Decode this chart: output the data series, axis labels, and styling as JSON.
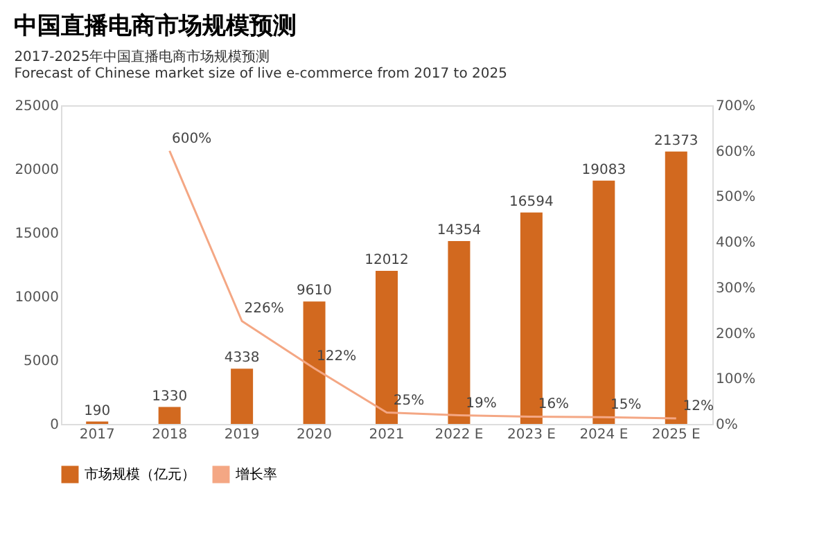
{
  "chart_data": {
    "type": "bar",
    "title": "中国直播电商市场规模预测",
    "subtitle": "2017-2025年中国直播电商市场规模预测",
    "annotations": [
      "Forecast of Chinese market size of live e-commerce from 2017 to 2025"
    ],
    "categories": [
      "2017",
      "2018",
      "2019",
      "2020",
      "2021",
      "2022 E",
      "2023 E",
      "2024 E",
      "2025 E"
    ],
    "series": [
      {
        "name": "市场规模（亿元）",
        "color": "#d2691f",
        "values": [
          190,
          1330,
          4338,
          9610,
          12012,
          14354,
          16594,
          19083,
          21373
        ]
      },
      {
        "name": "增长率",
        "type": "line",
        "axis": "y2",
        "color": "#f4a784",
        "values": [
          null,
          600,
          226,
          122,
          25,
          19,
          16,
          15,
          12
        ],
        "value_labels": [
          null,
          "600%",
          "226%",
          "122%",
          "25%",
          "19%",
          "16%",
          "15%",
          "12%"
        ]
      }
    ],
    "data_labels": true,
    "ylim": [
      0,
      25000
    ],
    "yticks": [
      0,
      5000,
      10000,
      15000,
      20000,
      25000
    ],
    "y2lim": [
      0,
      700
    ],
    "y2ticks": [
      {
        "value": 0,
        "label": "0%"
      },
      {
        "value": 100,
        "label": "100%"
      },
      {
        "value": 200,
        "label": "200%"
      },
      {
        "value": 300,
        "label": "300%"
      },
      {
        "value": 400,
        "label": "400%"
      },
      {
        "value": 500,
        "label": "500%"
      },
      {
        "value": 600,
        "label": "600%"
      },
      {
        "value": 700,
        "label": "700%"
      }
    ],
    "grid": false,
    "legend": "bottom",
    "marker": "none"
  }
}
